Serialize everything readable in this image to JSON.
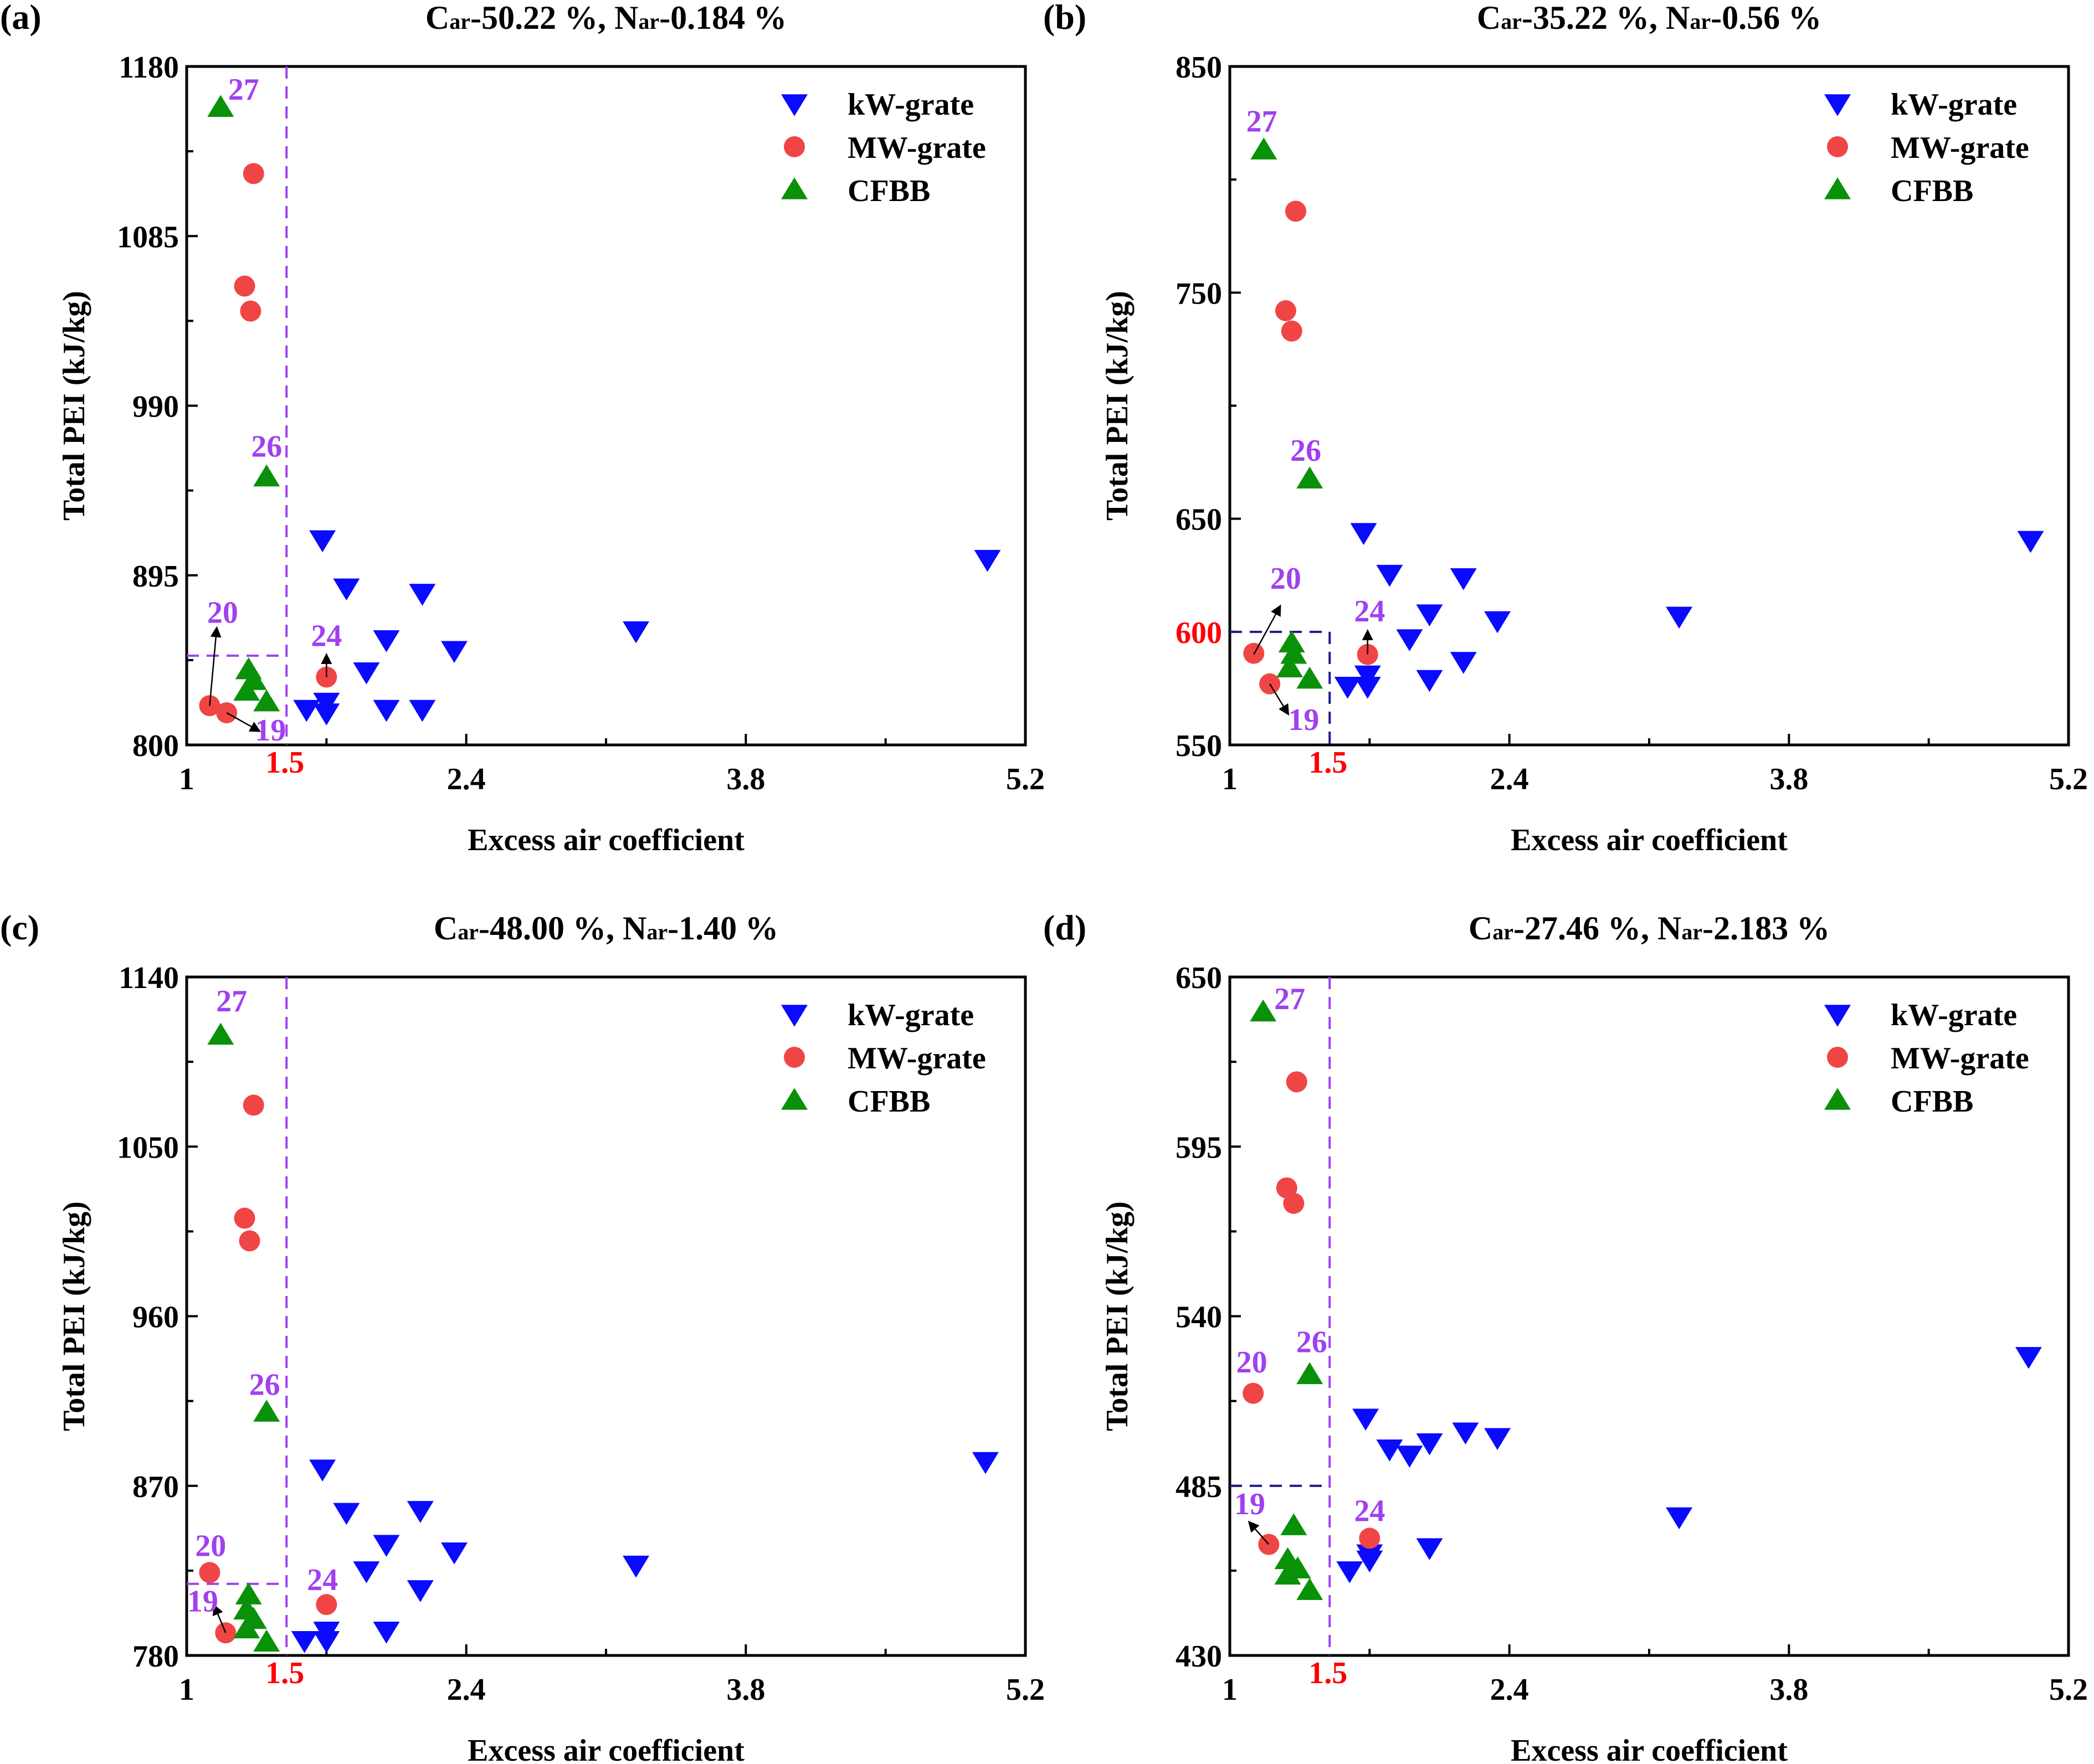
{
  "colors": {
    "kW-grate": "#0a0aff",
    "MW-grate": "#f04545",
    "CFBB": "#0a910a",
    "annotation": "#a040f0",
    "highlight": "#ff0000",
    "box_navy": "#1a1a8c"
  },
  "chart_data": [
    {
      "panel_label": "(a)",
      "type": "scatter",
      "title": {
        "s1": "C",
        "sub1": "ar",
        "s2": "-50.22 %, N",
        "sub2": "ar",
        "s3": "-0.184 %"
      },
      "xlabel": "Excess air coefficient",
      "ylabel": "Total PEI (kJ/kg)",
      "xlim": [
        1,
        5.2
      ],
      "ylim": [
        800,
        1180
      ],
      "xticks": [
        "1",
        "2.4",
        "3.8",
        "5.2"
      ],
      "yticks": [
        "800",
        "895",
        "990",
        "1085",
        "1180"
      ],
      "grid": false,
      "legend": "top-right",
      "series": [
        {
          "name": "kW-grate",
          "marker": "triangle-down",
          "points": [
            [
              1.68,
              915
            ],
            [
              1.8,
              888
            ],
            [
              2.18,
              885
            ],
            [
              2.0,
              859
            ],
            [
              2.34,
              853
            ],
            [
              1.9,
              841
            ],
            [
              3.25,
              864
            ],
            [
              5.01,
              904
            ],
            [
              1.6,
              820
            ],
            [
              1.7,
              824
            ],
            [
              1.7,
              818
            ],
            [
              2.0,
              820
            ],
            [
              2.18,
              820
            ]
          ]
        },
        {
          "name": "MW-grate",
          "marker": "circle",
          "points": [
            [
              1.335,
              1120
            ],
            [
              1.29,
              1057
            ],
            [
              1.32,
              1043
            ],
            [
              1.7,
              838
            ],
            [
              1.115,
              822
            ],
            [
              1.2,
              818
            ]
          ]
        },
        {
          "name": "CFBB",
          "marker": "triangle-up",
          "points": [
            [
              1.17,
              1157
            ],
            [
              1.4,
              950
            ],
            [
              1.31,
              842
            ],
            [
              1.335,
              836
            ],
            [
              1.3,
              830
            ],
            [
              1.4,
              824
            ]
          ]
        }
      ],
      "reference": {
        "x": 1.5,
        "x_label": "1.5",
        "y": 850,
        "y_label": "",
        "style": "purple-lines"
      },
      "annotations": [
        {
          "text": "27",
          "at": [
            1.285,
            1167
          ]
        },
        {
          "text": "26",
          "at": [
            1.4,
            967
          ]
        },
        {
          "text": "20",
          "at": [
            1.18,
            874
          ],
          "arrow": [
            [
              1.115,
              822
            ],
            [
              1.15,
              865
            ]
          ]
        },
        {
          "text": "24",
          "at": [
            1.7,
            861
          ],
          "arrow": [
            [
              1.7,
              838
            ],
            [
              1.7,
              850
            ]
          ]
        },
        {
          "text": "19",
          "at": [
            1.42,
            808
          ],
          "arrow": [
            [
              1.2,
              818
            ],
            [
              1.36,
              808
            ]
          ]
        }
      ]
    },
    {
      "panel_label": "(b)",
      "type": "scatter",
      "title": {
        "s1": "C",
        "sub1": "ar",
        "s2": "-35.22 %, N",
        "sub2": "ar",
        "s3": "-0.56 %"
      },
      "xlabel": "Excess air coefficient",
      "ylabel": "Total PEI (kJ/kg)",
      "xlim": [
        1,
        5.2
      ],
      "ylim": [
        550,
        850
      ],
      "xticks": [
        "1",
        "2.4",
        "3.8",
        "5.2"
      ],
      "yticks": [
        "550",
        "650",
        "750",
        "850"
      ],
      "grid": false,
      "legend": "top-right",
      "series": [
        {
          "name": "kW-grate",
          "marker": "triangle-down",
          "points": [
            [
              1.67,
              644
            ],
            [
              1.8,
              625.5
            ],
            [
              2.17,
              624
            ],
            [
              2.0,
              608
            ],
            [
              2.34,
              605
            ],
            [
              1.9,
              597
            ],
            [
              3.25,
              607
            ],
            [
              5.01,
              640.5
            ],
            [
              1.59,
              576
            ],
            [
              1.69,
              581
            ],
            [
              1.69,
              576
            ],
            [
              2.0,
              579
            ],
            [
              2.17,
              587
            ]
          ]
        },
        {
          "name": "MW-grate",
          "marker": "circle",
          "points": [
            [
              1.33,
              786
            ],
            [
              1.28,
              742
            ],
            [
              1.31,
              733
            ],
            [
              1.69,
              590
            ],
            [
              1.12,
              590.5
            ],
            [
              1.2,
              577
            ]
          ]
        },
        {
          "name": "CFBB",
          "marker": "triangle-up",
          "points": [
            [
              1.17,
              813
            ],
            [
              1.4,
              667.5
            ],
            [
              1.31,
              595
            ],
            [
              1.32,
              590
            ],
            [
              1.3,
              584
            ],
            [
              1.4,
              579
            ]
          ]
        }
      ],
      "reference": {
        "x": 1.5,
        "x_label": "1.5",
        "y": 600,
        "y_label": "600",
        "style": "navy-box"
      },
      "annotations": [
        {
          "text": "27",
          "at": [
            1.16,
            825.6
          ]
        },
        {
          "text": "26",
          "at": [
            1.38,
            680
          ]
        },
        {
          "text": "20",
          "at": [
            1.28,
            623.5
          ],
          "arrow": [
            [
              1.12,
              590
            ],
            [
              1.25,
              611
            ]
          ]
        },
        {
          "text": "24",
          "at": [
            1.7,
            609
          ],
          "arrow": [
            [
              1.69,
              590
            ],
            [
              1.69,
              600
            ]
          ]
        },
        {
          "text": "19",
          "at": [
            1.37,
            561
          ],
          "arrow": [
            [
              1.2,
              577
            ],
            [
              1.29,
              564
            ]
          ]
        }
      ]
    },
    {
      "panel_label": "(c)",
      "type": "scatter",
      "title": {
        "s1": "C",
        "sub1": "ar",
        "s2": "-48.00 %, N",
        "sub2": "ar",
        "s3": "-1.40 %"
      },
      "xlabel": "Excess air coefficient",
      "ylabel": "Total PEI (kJ/kg)",
      "xlim": [
        1,
        5.2
      ],
      "ylim": [
        780,
        1140
      ],
      "xticks": [
        "1",
        "2.4",
        "3.8",
        "5.2"
      ],
      "yticks": [
        "780",
        "870",
        "960",
        "1050",
        "1140"
      ],
      "grid": false,
      "legend": "top-right",
      "series": [
        {
          "name": "kW-grate",
          "marker": "triangle-down",
          "points": [
            [
              1.68,
              879
            ],
            [
              1.8,
              856
            ],
            [
              2.17,
              857
            ],
            [
              2.0,
              839
            ],
            [
              2.34,
              835
            ],
            [
              1.9,
              825
            ],
            [
              3.25,
              828
            ],
            [
              5.0,
              883
            ],
            [
              1.59,
              788
            ],
            [
              1.7,
              793
            ],
            [
              1.7,
              788
            ],
            [
              2.0,
              793
            ],
            [
              2.17,
              815
            ]
          ]
        },
        {
          "name": "MW-grate",
          "marker": "circle",
          "points": [
            [
              1.335,
              1072
            ],
            [
              1.29,
              1012
            ],
            [
              1.315,
              1000
            ],
            [
              1.7,
              807
            ],
            [
              1.115,
              824
            ],
            [
              1.195,
              792
            ]
          ]
        },
        {
          "name": "CFBB",
          "marker": "triangle-up",
          "points": [
            [
              1.17,
              1109
            ],
            [
              1.4,
              909
            ],
            [
              1.31,
              812
            ],
            [
              1.335,
              799
            ],
            [
              1.3,
              804
            ],
            [
              1.3,
              794
            ],
            [
              1.4,
              787
            ]
          ]
        }
      ],
      "reference": {
        "x": 1.5,
        "x_label": "1.5",
        "y": 818,
        "y_label": "",
        "style": "purple-lines"
      },
      "annotations": [
        {
          "text": "27",
          "at": [
            1.225,
            1127
          ]
        },
        {
          "text": "26",
          "at": [
            1.39,
            923.6
          ]
        },
        {
          "text": "20",
          "at": [
            1.12,
            838
          ]
        },
        {
          "text": "24",
          "at": [
            1.68,
            820
          ]
        },
        {
          "text": "19",
          "at": [
            1.08,
            808.6
          ],
          "arrow": [
            [
              1.195,
              792
            ],
            [
              1.14,
              806
            ]
          ]
        }
      ]
    },
    {
      "panel_label": "(d)",
      "type": "scatter",
      "title": {
        "s1": "C",
        "sub1": "ar",
        "s2": "-27.46 %, N",
        "sub2": "ar",
        "s3": "-2.183 %"
      },
      "xlabel": "Excess air coefficient",
      "ylabel": "Total PEI (kJ/kg)",
      "xlim": [
        1,
        5.2
      ],
      "ylim": [
        430,
        650
      ],
      "xticks": [
        "1",
        "2.4",
        "3.8",
        "5.2"
      ],
      "yticks": [
        "430",
        "485",
        "540",
        "595",
        "650"
      ],
      "grid": false,
      "legend": "top-right",
      "series": [
        {
          "name": "kW-grate",
          "marker": "triangle-down",
          "points": [
            [
              1.68,
              507
            ],
            [
              1.8,
              497
            ],
            [
              1.9,
              495
            ],
            [
              2.0,
              499
            ],
            [
              2.18,
              502.5
            ],
            [
              2.34,
              500.7
            ],
            [
              3.25,
              475
            ],
            [
              5.0,
              527
            ],
            [
              1.6,
              457.5
            ],
            [
              1.7,
              461
            ],
            [
              1.7,
              463
            ],
            [
              2.0,
              465
            ]
          ]
        },
        {
          "name": "MW-grate",
          "marker": "circle",
          "points": [
            [
              1.335,
              616
            ],
            [
              1.285,
              581.6
            ],
            [
              1.32,
              576.6
            ],
            [
              1.7,
              468
            ],
            [
              1.117,
              515
            ],
            [
              1.195,
              466
            ]
          ]
        },
        {
          "name": "CFBB",
          "marker": "triangle-up",
          "points": [
            [
              1.167,
              638.6
            ],
            [
              1.4,
              521
            ],
            [
              1.32,
              472
            ],
            [
              1.29,
              461
            ],
            [
              1.34,
              458
            ],
            [
              1.29,
              456
            ],
            [
              1.4,
              451
            ]
          ]
        }
      ],
      "reference": {
        "x": 1.5,
        "x_label": "1.5",
        "y": 485,
        "y_label": "",
        "style": "purple-vertical-navy-horizontal"
      },
      "annotations": [
        {
          "text": "27",
          "at": [
            1.3,
            642.8
          ]
        },
        {
          "text": "26",
          "at": [
            1.41,
            531.6
          ]
        },
        {
          "text": "20",
          "at": [
            1.11,
            525
          ]
        },
        {
          "text": "24",
          "at": [
            1.7,
            476.8
          ]
        },
        {
          "text": "19",
          "at": [
            1.1,
            479
          ],
          "arrow": [
            [
              1.195,
              466
            ],
            [
              1.1,
              473
            ]
          ]
        }
      ]
    }
  ]
}
